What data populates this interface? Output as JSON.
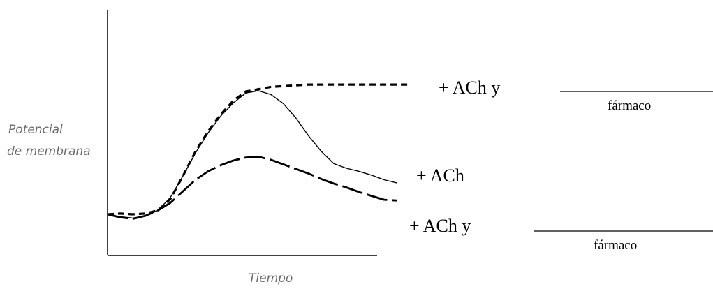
{
  "chart_data": {
    "type": "line",
    "xlabel": "Tiempo",
    "ylabel_lines": [
      "Potencial",
      "de membrana"
    ],
    "grid": false,
    "axis_ticks": false,
    "series": [
      {
        "name": "+ ACh  y",
        "label_key": "ach_y_top",
        "style": "dashed-short",
        "x": [
          0,
          5,
          10,
          15,
          20,
          25,
          30,
          35,
          40,
          45,
          50,
          55,
          60,
          65,
          70,
          75,
          80,
          85,
          90,
          95,
          100,
          105,
          110,
          115,
          120
        ],
        "y": [
          10,
          11,
          10,
          11,
          15,
          30,
          60,
          92,
          118,
          140,
          158,
          170,
          173,
          176,
          177,
          178,
          179,
          179,
          179,
          179,
          179,
          179,
          179,
          179,
          179
        ]
      },
      {
        "name": "+ ACh",
        "label_key": "ach",
        "style": "solid",
        "x": [
          0,
          5,
          10,
          15,
          20,
          25,
          30,
          35,
          40,
          45,
          50,
          55,
          60,
          65,
          70,
          75,
          80,
          85,
          90,
          95,
          100,
          105,
          110,
          115
        ],
        "y": [
          10,
          7,
          5,
          8,
          15,
          32,
          60,
          90,
          116,
          138,
          155,
          168,
          171,
          166,
          154,
          135,
          112,
          92,
          76,
          70,
          66,
          61,
          55,
          51
        ]
      },
      {
        "name": "+ ACh  y",
        "label_key": "ach_y_bottom",
        "style": "dashed-long",
        "x": [
          0,
          5,
          10,
          15,
          20,
          25,
          30,
          35,
          40,
          45,
          50,
          55,
          60,
          65,
          70,
          75,
          80,
          85,
          90,
          95,
          100,
          105,
          110,
          115
        ],
        "y": [
          10,
          6,
          4,
          8,
          15,
          25,
          40,
          55,
          66,
          74,
          80,
          84,
          85,
          81,
          75,
          69,
          63,
          56,
          50,
          45,
          39,
          34,
          29,
          28
        ]
      }
    ],
    "labels": {
      "ach_y_top": "+ ACh  y",
      "ach": "+ ACh",
      "ach_y_bottom": "+ ACh  y",
      "farmaco_top": "fármaco",
      "farmaco_bottom": "fármaco"
    }
  }
}
